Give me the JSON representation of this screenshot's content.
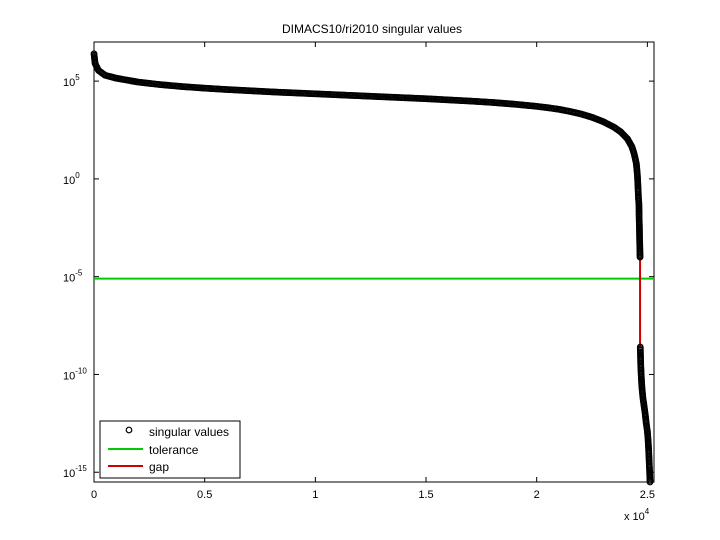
{
  "chart_data": {
    "type": "scatter",
    "title": "DIMACS10/ri2010 singular values",
    "xlabel": "",
    "ylabel": "",
    "x_multiplier_base": "x 10",
    "x_multiplier_exp": "4",
    "xlim": [
      0,
      2.53
    ],
    "ylim_log10": [
      -15.5,
      7
    ],
    "yscale": "log",
    "x_ticks": [
      {
        "value": 0,
        "label": "0"
      },
      {
        "value": 0.5,
        "label": "0.5"
      },
      {
        "value": 1,
        "label": "1"
      },
      {
        "value": 1.5,
        "label": "1.5"
      },
      {
        "value": 2,
        "label": "2"
      },
      {
        "value": 2.5,
        "label": "2.5"
      }
    ],
    "y_ticks": [
      {
        "log10": 5,
        "base": "10",
        "exp": "5"
      },
      {
        "log10": 0,
        "base": "10",
        "exp": "0"
      },
      {
        "log10": -5,
        "base": "10",
        "exp": "-5"
      },
      {
        "log10": -10,
        "base": "10",
        "exp": "-10"
      },
      {
        "log10": -15,
        "base": "10",
        "exp": "-15"
      }
    ],
    "grid": false,
    "legend_position": "bottom-left",
    "series": [
      {
        "name": "singular values",
        "marker": "circle",
        "color": "#000000",
        "points": [
          [
            0.0,
            6.4
          ],
          [
            0.005,
            5.9
          ],
          [
            0.02,
            5.55
          ],
          [
            0.05,
            5.3
          ],
          [
            0.1,
            5.15
          ],
          [
            0.2,
            4.95
          ],
          [
            0.3,
            4.82
          ],
          [
            0.4,
            4.72
          ],
          [
            0.5,
            4.64
          ],
          [
            0.6,
            4.57
          ],
          [
            0.7,
            4.51
          ],
          [
            0.8,
            4.45
          ],
          [
            0.9,
            4.4
          ],
          [
            1.0,
            4.35
          ],
          [
            1.1,
            4.3
          ],
          [
            1.2,
            4.25
          ],
          [
            1.3,
            4.2
          ],
          [
            1.4,
            4.15
          ],
          [
            1.5,
            4.1
          ],
          [
            1.6,
            4.04
          ],
          [
            1.7,
            3.98
          ],
          [
            1.8,
            3.91
          ],
          [
            1.9,
            3.82
          ],
          [
            2.0,
            3.71
          ],
          [
            2.05,
            3.64
          ],
          [
            2.1,
            3.56
          ],
          [
            2.15,
            3.45
          ],
          [
            2.2,
            3.32
          ],
          [
            2.25,
            3.15
          ],
          [
            2.3,
            2.93
          ],
          [
            2.35,
            2.64
          ],
          [
            2.38,
            2.4
          ],
          [
            2.41,
            2.05
          ],
          [
            2.43,
            1.65
          ],
          [
            2.44,
            1.3
          ],
          [
            2.45,
            0.8
          ],
          [
            2.455,
            0.2
          ],
          [
            2.458,
            -0.5
          ],
          [
            2.46,
            -1.0
          ],
          [
            2.462,
            -1.3
          ],
          [
            2.463,
            -2.1
          ],
          [
            2.464,
            -2.4
          ],
          [
            2.465,
            -3.1
          ],
          [
            2.466,
            -3.5
          ],
          [
            2.467,
            -4.0
          ],
          [
            2.468,
            -8.6
          ],
          [
            2.469,
            -9.0
          ],
          [
            2.47,
            -9.5
          ],
          [
            2.472,
            -10.0
          ],
          [
            2.475,
            -10.6
          ],
          [
            2.48,
            -11.2
          ],
          [
            2.485,
            -11.6
          ],
          [
            2.49,
            -12.0
          ],
          [
            2.495,
            -12.5
          ],
          [
            2.5,
            -12.9
          ],
          [
            2.503,
            -13.3
          ],
          [
            2.506,
            -13.9
          ],
          [
            2.508,
            -14.4
          ],
          [
            2.51,
            -14.9
          ],
          [
            2.512,
            -15.5
          ]
        ]
      },
      {
        "name": "tolerance",
        "color": "#00cc00",
        "log10_value": -5.1
      },
      {
        "name": "gap",
        "color": "#cc0000",
        "x": 2.467,
        "log10_range": [
          -4.0,
          -8.6
        ]
      }
    ]
  }
}
